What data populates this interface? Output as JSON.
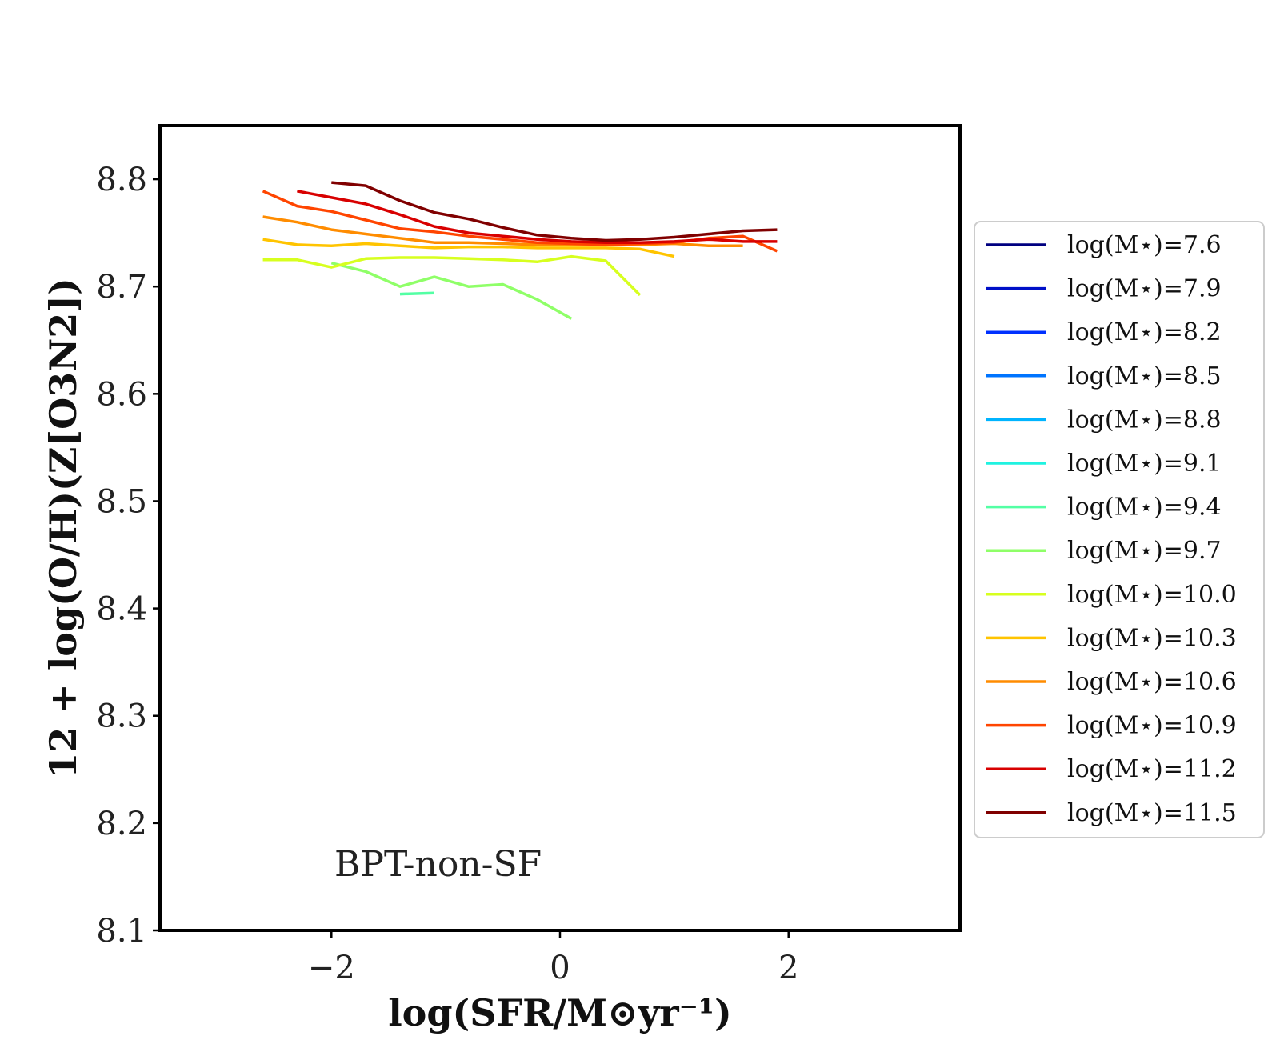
{
  "chart_data": {
    "type": "line",
    "title": "",
    "xlabel": "log(SFR/M⊙yr⁻¹)",
    "ylabel": "12 + log(O/H)(Z[O3N2])",
    "xlim": [
      -3.5,
      3.5
    ],
    "ylim": [
      8.1,
      8.85
    ],
    "xticks": [
      -2,
      0,
      2
    ],
    "xtick_labels": [
      "−2",
      "0",
      "2"
    ],
    "yticks": [
      8.1,
      8.2,
      8.3,
      8.4,
      8.5,
      8.6,
      8.7,
      8.8
    ],
    "ytick_labels": [
      "8.1",
      "8.2",
      "8.3",
      "8.4",
      "8.5",
      "8.6",
      "8.7",
      "8.8"
    ],
    "annotation": "BPT-non-SF",
    "grid": false,
    "legend_position": "right",
    "series": [
      {
        "name": "log(M⋆)=7.6",
        "color": "#000080",
        "x": [],
        "y": []
      },
      {
        "name": "log(M⋆)=7.9",
        "color": "#0010c8",
        "x": [],
        "y": []
      },
      {
        "name": "log(M⋆)=8.2",
        "color": "#0030ff",
        "x": [],
        "y": []
      },
      {
        "name": "log(M⋆)=8.5",
        "color": "#0074ff",
        "x": [],
        "y": []
      },
      {
        "name": "log(M⋆)=8.8",
        "color": "#00b4ff",
        "x": [],
        "y": []
      },
      {
        "name": "log(M⋆)=9.1",
        "color": "#1ff2e0",
        "x": [],
        "y": []
      },
      {
        "name": "log(M⋆)=9.4",
        "color": "#53ffa4",
        "x": [
          -1.4,
          -1.1
        ],
        "y": [
          8.693,
          8.694
        ]
      },
      {
        "name": "log(M⋆)=9.7",
        "color": "#8fff68",
        "x": [
          -2.0,
          -1.7,
          -1.4,
          -1.1,
          -0.8,
          -0.5,
          -0.2,
          0.1
        ],
        "y": [
          8.722,
          8.714,
          8.7,
          8.709,
          8.7,
          8.702,
          8.688,
          8.67
        ]
      },
      {
        "name": "log(M⋆)=10.0",
        "color": "#d7ff1f",
        "x": [
          -2.6,
          -2.3,
          -2.0,
          -1.7,
          -1.4,
          -1.1,
          -0.8,
          -0.5,
          -0.2,
          0.1,
          0.4,
          0.7
        ],
        "y": [
          8.725,
          8.725,
          8.718,
          8.726,
          8.727,
          8.727,
          8.726,
          8.725,
          8.723,
          8.728,
          8.724,
          8.692
        ]
      },
      {
        "name": "log(M⋆)=10.3",
        "color": "#ffc400",
        "x": [
          -2.6,
          -2.3,
          -2.0,
          -1.7,
          -1.4,
          -1.1,
          -0.8,
          -0.5,
          -0.2,
          0.1,
          0.4,
          0.7,
          1.0
        ],
        "y": [
          8.744,
          8.739,
          8.738,
          8.74,
          8.738,
          8.736,
          8.737,
          8.737,
          8.736,
          8.736,
          8.736,
          8.735,
          8.728
        ]
      },
      {
        "name": "log(M⋆)=10.6",
        "color": "#ff8c00",
        "x": [
          -2.6,
          -2.3,
          -2.0,
          -1.7,
          -1.4,
          -1.1,
          -0.8,
          -0.5,
          -0.2,
          0.1,
          0.4,
          0.7,
          1.0,
          1.3,
          1.6
        ],
        "y": [
          8.765,
          8.76,
          8.753,
          8.749,
          8.745,
          8.741,
          8.741,
          8.74,
          8.739,
          8.739,
          8.739,
          8.739,
          8.74,
          8.738,
          8.738
        ]
      },
      {
        "name": "log(M⋆)=10.9",
        "color": "#ff4500",
        "x": [
          -2.6,
          -2.3,
          -2.0,
          -1.7,
          -1.4,
          -1.1,
          -0.8,
          -0.5,
          -0.2,
          0.1,
          0.4,
          0.7,
          1.0,
          1.3,
          1.6,
          1.9
        ],
        "y": [
          8.789,
          8.775,
          8.77,
          8.762,
          8.754,
          8.751,
          8.747,
          8.744,
          8.741,
          8.74,
          8.739,
          8.74,
          8.741,
          8.745,
          8.747,
          8.733
        ]
      },
      {
        "name": "log(M⋆)=11.2",
        "color": "#d80000",
        "x": [
          -2.3,
          -2.0,
          -1.7,
          -1.4,
          -1.1,
          -0.8,
          -0.5,
          -0.2,
          0.1,
          0.4,
          0.7,
          1.0,
          1.3,
          1.6,
          1.9
        ],
        "y": [
          8.789,
          8.783,
          8.777,
          8.767,
          8.756,
          8.75,
          8.747,
          8.744,
          8.742,
          8.741,
          8.741,
          8.742,
          8.744,
          8.742,
          8.742
        ]
      },
      {
        "name": "log(M⋆)=11.5",
        "color": "#800000",
        "x": [
          -2.0,
          -1.7,
          -1.4,
          -1.1,
          -0.8,
          -0.5,
          -0.2,
          0.1,
          0.4,
          0.7,
          1.0,
          1.3,
          1.6,
          1.9
        ],
        "y": [
          8.797,
          8.794,
          8.78,
          8.769,
          8.763,
          8.755,
          8.748,
          8.745,
          8.743,
          8.744,
          8.746,
          8.749,
          8.752,
          8.753
        ]
      }
    ]
  }
}
